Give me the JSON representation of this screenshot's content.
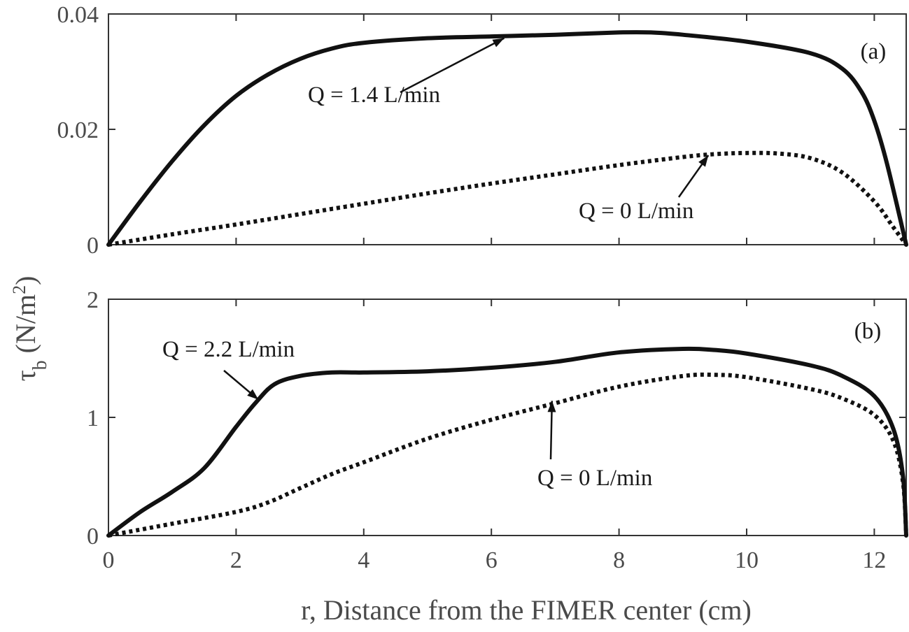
{
  "figure": {
    "ylabel_main": "τ",
    "ylabel_sub": "b",
    "ylabel_rest": " (N/m",
    "ylabel_sup": "2",
    "ylabel_end": ")",
    "xlabel": "r, Distance from the FIMER center (cm)"
  },
  "chart_data": [
    {
      "type": "line",
      "panel_label": "(a)",
      "xlim": [
        0,
        12.5
      ],
      "ylim": [
        0,
        0.04
      ],
      "xticks": [
        0,
        2,
        4,
        6,
        8,
        10,
        12
      ],
      "yticks": [
        0,
        0.02,
        0.04
      ],
      "ytick_labels": [
        "0",
        "0.02",
        "0.04"
      ],
      "series": [
        {
          "name": "Q = 1.4 L/min",
          "style": "solid",
          "x": [
            0,
            0.5,
            1,
            1.5,
            2,
            2.5,
            3,
            3.5,
            4,
            5,
            6,
            7,
            8,
            8.5,
            9,
            10,
            11,
            11.5,
            11.8,
            12,
            12.2,
            12.5
          ],
          "y": [
            0,
            0.0075,
            0.0145,
            0.0207,
            0.0258,
            0.0295,
            0.0322,
            0.034,
            0.035,
            0.0358,
            0.0361,
            0.0364,
            0.0368,
            0.0368,
            0.0364,
            0.0352,
            0.0332,
            0.0305,
            0.0265,
            0.0215,
            0.014,
            0
          ]
        },
        {
          "name": "Q = 0 L/min",
          "style": "dotted",
          "x": [
            0,
            1,
            2,
            3,
            4,
            5,
            6,
            7,
            8,
            9,
            9.5,
            10,
            10.5,
            11,
            11.5,
            12,
            12.3,
            12.5
          ],
          "y": [
            0,
            0.0018,
            0.0035,
            0.0053,
            0.0071,
            0.0089,
            0.0106,
            0.0122,
            0.0138,
            0.0152,
            0.0157,
            0.0159,
            0.0158,
            0.015,
            0.0125,
            0.0075,
            0.003,
            0
          ]
        }
      ],
      "annotations": [
        {
          "text": "Q = 1.4 L/min",
          "series": 0,
          "x": 6.2,
          "y": 0.0358
        },
        {
          "text": "Q = 0 L/min",
          "series": 1,
          "x": 9.4,
          "y": 0.0155
        }
      ]
    },
    {
      "type": "line",
      "panel_label": "(b)",
      "xlim": [
        0,
        12.5
      ],
      "ylim": [
        0,
        2
      ],
      "xticks": [
        0,
        2,
        4,
        6,
        8,
        10,
        12
      ],
      "yticks": [
        0,
        1,
        2
      ],
      "ytick_labels": [
        "0",
        "1",
        "2"
      ],
      "xtick_labels": [
        "0",
        "2",
        "4",
        "6",
        "8",
        "10",
        "12"
      ],
      "series": [
        {
          "name": "Q = 2.2 L/min",
          "style": "solid",
          "x": [
            0,
            0.5,
            1,
            1.5,
            2,
            2.3,
            2.6,
            3,
            3.5,
            4,
            5,
            6,
            7,
            8,
            9,
            9.5,
            10,
            11,
            11.5,
            12,
            12.3,
            12.45,
            12.5
          ],
          "y": [
            0,
            0.2,
            0.37,
            0.57,
            0.92,
            1.12,
            1.28,
            1.35,
            1.38,
            1.38,
            1.39,
            1.42,
            1.47,
            1.55,
            1.58,
            1.57,
            1.54,
            1.44,
            1.35,
            1.18,
            0.9,
            0.5,
            0
          ]
        },
        {
          "name": "Q = 0 L/min",
          "style": "dotted",
          "x": [
            0,
            1,
            2,
            2.5,
            3,
            3.5,
            4,
            5,
            6,
            7,
            8,
            9,
            9.5,
            10,
            11,
            11.5,
            12,
            12.3,
            12.45,
            12.5
          ],
          "y": [
            0,
            0.1,
            0.2,
            0.28,
            0.4,
            0.52,
            0.62,
            0.82,
            0.98,
            1.12,
            1.26,
            1.35,
            1.36,
            1.34,
            1.24,
            1.16,
            1.02,
            0.8,
            0.45,
            0
          ]
        }
      ],
      "annotations": [
        {
          "text": "Q = 2.2 L/min",
          "series": 0,
          "x": 2.35,
          "y": 1.15
        },
        {
          "text": "Q = 0 L/min",
          "series": 1,
          "x": 6.95,
          "y": 1.14
        }
      ]
    }
  ]
}
